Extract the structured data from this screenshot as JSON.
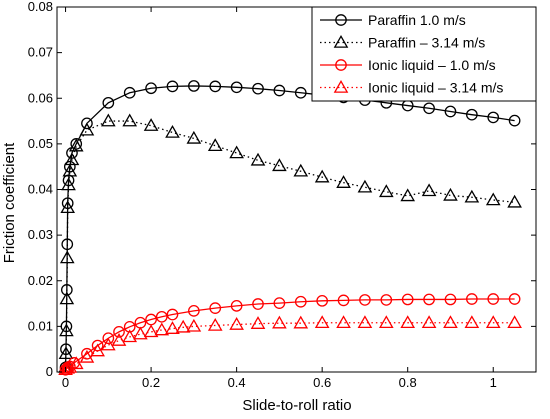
{
  "chart_data": {
    "type": "line",
    "xlabel": "Slide-to-roll ratio",
    "ylabel": "Friction coefficient",
    "xlim": [
      -0.02,
      1.1
    ],
    "ylim": [
      0,
      0.08
    ],
    "xticks": [
      0,
      0.2,
      0.4,
      0.6,
      0.8,
      1
    ],
    "xtick_labels": [
      "0",
      "0.2",
      "0.4",
      "0.6",
      "0.8",
      "1"
    ],
    "yticks": [
      0,
      0.01,
      0.02,
      0.03,
      0.04,
      0.05,
      0.06,
      0.07,
      0.08
    ],
    "ytick_labels": [
      "0",
      "0.01",
      "0.02",
      "0.03",
      "0.04",
      "0.05",
      "0.06",
      "0.07",
      "0.08"
    ],
    "grid": false,
    "legend_position": "top-right",
    "series": [
      {
        "name": "Paraffin 1.0 m/s",
        "color": "#000000",
        "line_style": "solid",
        "marker": "circle",
        "x": [
          0,
          0.001,
          0.002,
          0.003,
          0.004,
          0.005,
          0.007,
          0.01,
          0.015,
          0.025,
          0.05,
          0.1,
          0.15,
          0.2,
          0.25,
          0.3,
          0.35,
          0.4,
          0.45,
          0.5,
          0.55,
          0.6,
          0.65,
          0.7,
          0.75,
          0.8,
          0.85,
          0.9,
          0.95,
          1.0,
          1.05
        ],
        "y": [
          0.001,
          0.005,
          0.01,
          0.018,
          0.028,
          0.037,
          0.042,
          0.045,
          0.048,
          0.05,
          0.0545,
          0.059,
          0.0612,
          0.0622,
          0.0626,
          0.0627,
          0.0626,
          0.0624,
          0.0621,
          0.0617,
          0.0612,
          0.0607,
          0.0602,
          0.0596,
          0.059,
          0.0584,
          0.0578,
          0.0571,
          0.0564,
          0.0558,
          0.0551
        ]
      },
      {
        "name": "Paraffin – 3.14 m/s",
        "color": "#000000",
        "line_style": "dotted",
        "marker": "triangle",
        "x": [
          0,
          0.001,
          0.002,
          0.003,
          0.004,
          0.005,
          0.007,
          0.01,
          0.015,
          0.025,
          0.05,
          0.1,
          0.15,
          0.2,
          0.25,
          0.3,
          0.35,
          0.4,
          0.45,
          0.5,
          0.55,
          0.6,
          0.65,
          0.7,
          0.75,
          0.8,
          0.85,
          0.9,
          0.95,
          1.0,
          1.05
        ],
        "y": [
          0.001,
          0.004,
          0.009,
          0.016,
          0.025,
          0.036,
          0.041,
          0.044,
          0.0465,
          0.0495,
          0.053,
          0.055,
          0.055,
          0.054,
          0.0525,
          0.0512,
          0.0496,
          0.048,
          0.0464,
          0.0452,
          0.044,
          0.0427,
          0.0415,
          0.0405,
          0.0395,
          0.0386,
          0.0397,
          0.0387,
          0.0383,
          0.0377,
          0.0372
        ]
      },
      {
        "name": "Ionic liquid – 1.0 m/s",
        "color": "#ff0000",
        "line_style": "solid",
        "marker": "circle",
        "x": [
          0,
          0.005,
          0.01,
          0.02,
          0.05,
          0.075,
          0.1,
          0.125,
          0.15,
          0.175,
          0.2,
          0.225,
          0.25,
          0.3,
          0.35,
          0.4,
          0.45,
          0.5,
          0.55,
          0.6,
          0.65,
          0.7,
          0.75,
          0.8,
          0.85,
          0.9,
          0.95,
          1.0,
          1.05
        ],
        "y": [
          0.0005,
          0.001,
          0.0012,
          0.002,
          0.004,
          0.0058,
          0.0074,
          0.0088,
          0.0099,
          0.0108,
          0.0115,
          0.0121,
          0.0126,
          0.0134,
          0.014,
          0.0145,
          0.0149,
          0.0151,
          0.0154,
          0.0156,
          0.0157,
          0.0158,
          0.0158,
          0.0159,
          0.0159,
          0.0159,
          0.016,
          0.016,
          0.016
        ]
      },
      {
        "name": "Ionic liquid – 3.14 m/s",
        "color": "#ff0000",
        "line_style": "dotted",
        "marker": "triangle",
        "x": [
          0,
          0.005,
          0.01,
          0.025,
          0.05,
          0.075,
          0.1,
          0.125,
          0.15,
          0.175,
          0.2,
          0.225,
          0.25,
          0.275,
          0.3,
          0.35,
          0.4,
          0.45,
          0.5,
          0.55,
          0.6,
          0.65,
          0.7,
          0.75,
          0.8,
          0.85,
          0.9,
          0.95,
          1.0,
          1.05
        ],
        "y": [
          0.0005,
          0.0008,
          0.001,
          0.0018,
          0.0032,
          0.0046,
          0.0059,
          0.0069,
          0.0077,
          0.0083,
          0.0088,
          0.0092,
          0.0095,
          0.0098,
          0.01,
          0.0102,
          0.0104,
          0.0106,
          0.0107,
          0.0107,
          0.0108,
          0.0108,
          0.0108,
          0.0108,
          0.0108,
          0.0108,
          0.0108,
          0.0108,
          0.0108,
          0.0108
        ]
      }
    ]
  }
}
